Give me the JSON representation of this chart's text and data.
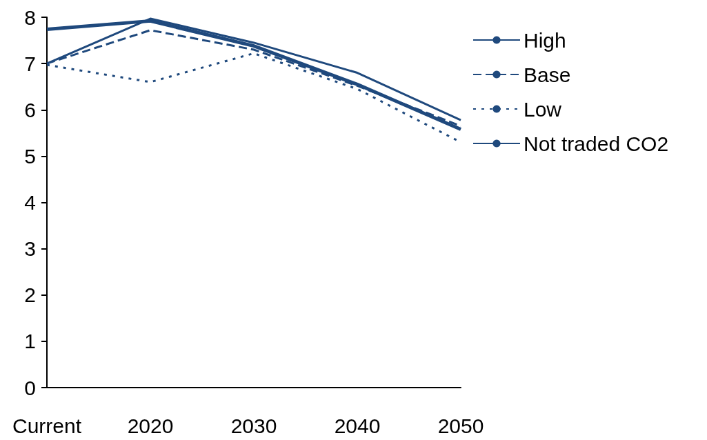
{
  "chart_data": {
    "type": "line",
    "categories": [
      "Current",
      "2020",
      "2030",
      "2040",
      "2050"
    ],
    "series": [
      {
        "name": "High",
        "color": "#1f497d",
        "line_style": "solid",
        "values": [
          7.0,
          7.97,
          7.45,
          6.8,
          5.78
        ]
      },
      {
        "name": "Base",
        "color": "#1f497d",
        "line_style": "dashed",
        "values": [
          7.0,
          7.72,
          7.3,
          6.52,
          5.65
        ]
      },
      {
        "name": "Low",
        "color": "#1f497d",
        "line_style": "dotted",
        "values": [
          6.97,
          6.6,
          7.22,
          6.45,
          5.3
        ]
      },
      {
        "name": "Not traded CO2",
        "color": "#1f497d",
        "line_style": "solid",
        "values": [
          7.74,
          7.92,
          7.38,
          6.55,
          5.58
        ]
      }
    ],
    "ylim": [
      0,
      8
    ],
    "yticks": [
      0,
      1,
      2,
      3,
      4,
      5,
      6,
      7,
      8
    ],
    "grid": false,
    "legend": "right",
    "marker": "none"
  }
}
